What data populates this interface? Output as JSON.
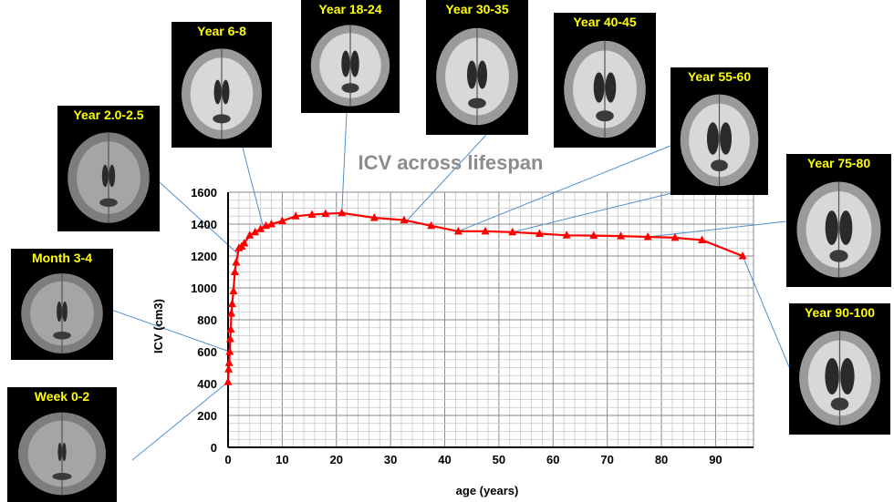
{
  "chart_data": {
    "type": "line",
    "title": "ICV across lifespan",
    "xlabel": "age (years)",
    "ylabel": "ICV (cm3)",
    "xlim": [
      0,
      97
    ],
    "ylim": [
      0,
      1600
    ],
    "x_ticks": [
      0,
      10,
      20,
      30,
      40,
      50,
      60,
      70,
      80,
      90
    ],
    "y_ticks": [
      0,
      200,
      400,
      600,
      800,
      1000,
      1200,
      1400,
      1600
    ],
    "grid": true,
    "series": [
      {
        "color": "#ff0000",
        "marker": "triangle",
        "x": [
          0.0,
          0.1,
          0.2,
          0.3,
          0.4,
          0.5,
          0.6,
          0.75,
          1.0,
          1.25,
          1.5,
          2.0,
          2.5,
          3.0,
          4.0,
          5.0,
          6.0,
          7.0,
          8.0,
          10.0,
          12.5,
          15.5,
          18.0,
          21.0,
          27.0,
          32.5,
          37.5,
          42.5,
          47.5,
          52.5,
          57.5,
          62.5,
          67.5,
          72.5,
          77.5,
          82.5,
          87.5,
          95.0
        ],
        "values": [
          410,
          490,
          530,
          600,
          680,
          740,
          840,
          900,
          980,
          1100,
          1160,
          1250,
          1260,
          1280,
          1330,
          1350,
          1370,
          1390,
          1400,
          1420,
          1450,
          1460,
          1465,
          1470,
          1440,
          1425,
          1390,
          1355,
          1355,
          1350,
          1340,
          1330,
          1328,
          1325,
          1320,
          1315,
          1300,
          1200
        ]
      }
    ]
  },
  "thumbnails": [
    {
      "label": "Week 0-2"
    },
    {
      "label": "Month 3-4"
    },
    {
      "label": "Year 2.0-2.5"
    },
    {
      "label": "Year 6-8"
    },
    {
      "label": "Year 18-24"
    },
    {
      "label": "Year 30-35"
    },
    {
      "label": "Year 40-45"
    },
    {
      "label": "Year 55-60"
    },
    {
      "label": "Year 75-80"
    },
    {
      "label": "Year 90-100"
    }
  ]
}
